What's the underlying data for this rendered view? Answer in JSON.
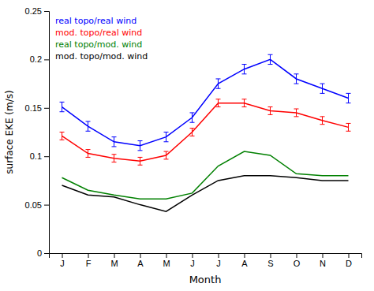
{
  "chart_data": {
    "type": "line",
    "xlabel": "Month",
    "ylabel": "surface EKE (m/s)",
    "categories": [
      "J",
      "F",
      "M",
      "A",
      "M",
      "J",
      "J",
      "A",
      "S",
      "O",
      "N",
      "D"
    ],
    "series": [
      {
        "name": "real topo/real wind",
        "color": "blue",
        "values": [
          0.151,
          0.131,
          0.115,
          0.111,
          0.12,
          0.14,
          0.175,
          0.19,
          0.2,
          0.18,
          0.17,
          0.16
        ],
        "error": 0.005
      },
      {
        "name": "mod. topo/real wind",
        "color": "red",
        "values": [
          0.121,
          0.103,
          0.098,
          0.095,
          0.101,
          0.125,
          0.155,
          0.155,
          0.147,
          0.145,
          0.137,
          0.13
        ],
        "error": 0.004
      },
      {
        "name": "real topo/mod. wind",
        "color": "green",
        "values": [
          0.078,
          0.065,
          0.06,
          0.056,
          0.056,
          0.062,
          0.09,
          0.105,
          0.101,
          0.082,
          0.08,
          0.08
        ]
      },
      {
        "name": "mod. topo/mod. wind",
        "color": "black",
        "values": [
          0.07,
          0.06,
          0.058,
          0.05,
          0.043,
          0.06,
          0.075,
          0.08,
          0.08,
          0.078,
          0.075,
          0.075
        ]
      }
    ],
    "ylim": [
      0,
      0.25
    ],
    "yticks": [
      0,
      0.05,
      0.1,
      0.15,
      0.2,
      0.25
    ],
    "grid": false,
    "legend": "upper-left"
  }
}
